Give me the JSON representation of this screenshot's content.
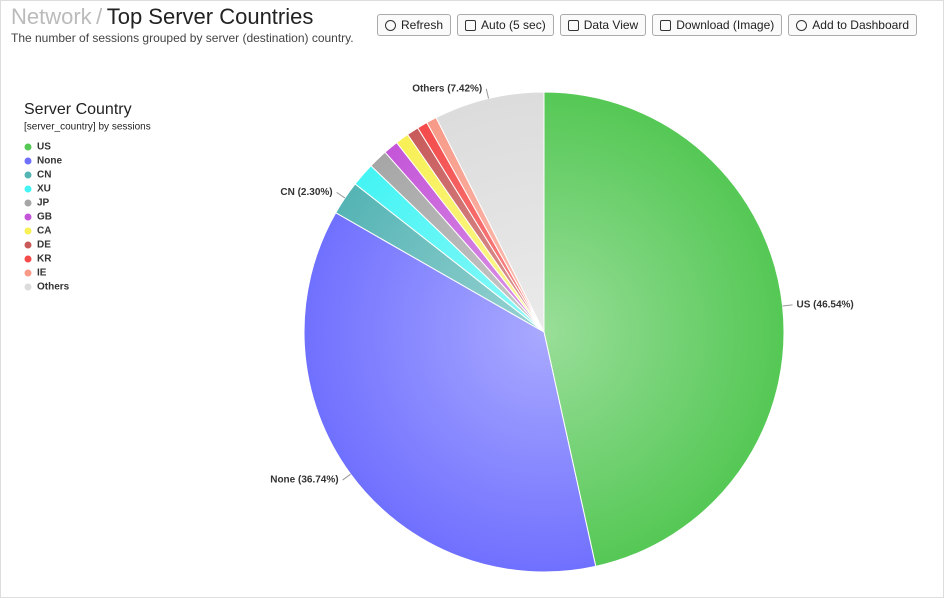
{
  "header": {
    "breadcrumb": "Network",
    "separator": "/",
    "title": "Top Server Countries",
    "description": "The number of sessions grouped by server (destination) country."
  },
  "toolbar": {
    "buttons": [
      "Refresh",
      "Auto (5 sec)",
      "Data View",
      "Download (Image)",
      "Add to Dashboard"
    ]
  },
  "chart_data": {
    "type": "pie",
    "legend_title": "Server Country",
    "legend_subtitle": "[server_country] by sessions",
    "legend": "left",
    "categories": [
      "US",
      "None",
      "CN",
      "XU",
      "JP",
      "GB",
      "CA",
      "DE",
      "KR",
      "IE",
      "Others"
    ],
    "values": [
      46.54,
      36.74,
      2.3,
      1.6,
      1.3,
      1.0,
      0.9,
      0.8,
      0.7,
      0.7,
      7.42
    ],
    "value_labels": [
      "US (46.54%)",
      "None (36.74%)",
      "CN (2.30%)",
      null,
      null,
      null,
      null,
      null,
      null,
      null,
      "Others (7.42%)"
    ],
    "colors": [
      "#55c855",
      "#7070ff",
      "#55b4b4",
      "#44f4f4",
      "#a6a6a6",
      "#c455d8",
      "#f8f055",
      "#c85a5a",
      "#f44a4a",
      "#f89a88",
      "#dcdcdc"
    ]
  }
}
